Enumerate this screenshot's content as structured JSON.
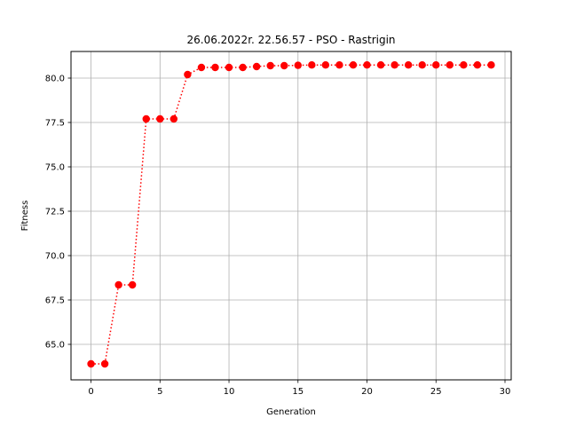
{
  "chart_data": {
    "type": "line",
    "title": "26.06.2022r. 22.56.57 - PSO - Rastrigin",
    "xlabel": "Generation",
    "ylabel": "Fitness",
    "xlim": [
      -1.45,
      30.45
    ],
    "ylim": [
      63.0,
      81.5
    ],
    "grid": true,
    "xticks": [
      0,
      5,
      10,
      15,
      20,
      25,
      30
    ],
    "xtick_labels": [
      "0",
      "5",
      "10",
      "15",
      "20",
      "25",
      "30"
    ],
    "yticks": [
      65.0,
      67.5,
      70.0,
      72.5,
      75.0,
      77.5,
      80.0
    ],
    "ytick_labels": [
      "65.0",
      "67.5",
      "70.0",
      "72.5",
      "75.0",
      "77.5",
      "80.0"
    ],
    "series": [
      {
        "line_style": "dotted",
        "marker": "circle",
        "color": "#ff0000",
        "x": [
          0,
          1,
          2,
          3,
          4,
          5,
          6,
          7,
          8,
          9,
          10,
          11,
          12,
          13,
          14,
          15,
          16,
          17,
          18,
          19,
          20,
          21,
          22,
          23,
          24,
          25,
          26,
          27,
          28,
          29
        ],
        "y": [
          63.9,
          63.9,
          68.35,
          68.35,
          77.7,
          77.7,
          77.7,
          80.2,
          80.6,
          80.6,
          80.6,
          80.6,
          80.65,
          80.7,
          80.7,
          80.72,
          80.74,
          80.74,
          80.74,
          80.74,
          80.74,
          80.74,
          80.74,
          80.74,
          80.74,
          80.74,
          80.74,
          80.74,
          80.74,
          80.74
        ]
      }
    ]
  }
}
